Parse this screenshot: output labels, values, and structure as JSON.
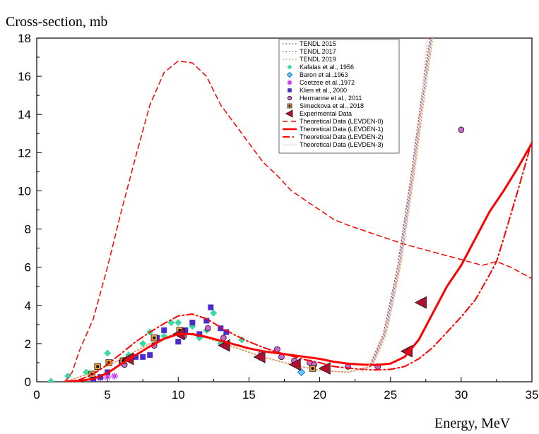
{
  "chart_data": {
    "type": "scatter",
    "title": "",
    "xlabel": "Energy, MeV",
    "ylabel": "Cross-section, mb",
    "xlim": [
      0,
      35
    ],
    "ylim": [
      0,
      18
    ],
    "xticks": [
      0,
      5,
      10,
      15,
      20,
      25,
      30,
      35
    ],
    "yticks": [
      0,
      2,
      4,
      6,
      8,
      10,
      12,
      14,
      16,
      18
    ],
    "legend_position": "top-center",
    "series": [
      {
        "name": "TENDL 2015",
        "kind": "line",
        "style": "dotted",
        "color": "#c0504d",
        "points": [
          [
            2,
            0
          ],
          [
            4,
            0.5
          ],
          [
            6,
            1.2
          ],
          [
            8,
            2.0
          ],
          [
            10,
            2.6
          ],
          [
            12,
            2.3
          ],
          [
            14,
            1.8
          ],
          [
            16,
            1.3
          ],
          [
            18,
            0.9
          ],
          [
            20,
            0.6
          ],
          [
            22,
            0.5
          ],
          [
            23.5,
            0.8
          ],
          [
            24.5,
            2.5
          ],
          [
            25.5,
            6.0
          ],
          [
            26.5,
            11.0
          ],
          [
            27.3,
            15.5
          ],
          [
            27.8,
            18
          ]
        ]
      },
      {
        "name": "TENDL 2017",
        "kind": "line",
        "style": "dotted",
        "color": "#4f81bd",
        "points": [
          [
            2,
            0
          ],
          [
            4,
            0.5
          ],
          [
            6,
            1.2
          ],
          [
            8,
            2.0
          ],
          [
            10,
            2.6
          ],
          [
            12,
            2.3
          ],
          [
            14,
            1.8
          ],
          [
            16,
            1.3
          ],
          [
            18,
            0.9
          ],
          [
            20,
            0.6
          ],
          [
            22,
            0.5
          ],
          [
            23.6,
            0.8
          ],
          [
            24.6,
            2.5
          ],
          [
            25.6,
            6.0
          ],
          [
            26.6,
            11.0
          ],
          [
            27.4,
            15.5
          ],
          [
            27.9,
            18
          ]
        ]
      },
      {
        "name": "TENDL 2019",
        "kind": "line",
        "style": "dotted",
        "color": "#f79646",
        "points": [
          [
            2,
            0
          ],
          [
            4,
            0.5
          ],
          [
            6,
            1.2
          ],
          [
            8,
            2.0
          ],
          [
            10,
            2.6
          ],
          [
            12,
            2.3
          ],
          [
            14,
            1.8
          ],
          [
            16,
            1.3
          ],
          [
            18,
            0.9
          ],
          [
            20,
            0.6
          ],
          [
            22,
            0.5
          ],
          [
            23.7,
            0.8
          ],
          [
            24.7,
            2.5
          ],
          [
            25.7,
            6.0
          ],
          [
            26.7,
            11.0
          ],
          [
            27.5,
            15.5
          ],
          [
            28.0,
            18
          ]
        ]
      },
      {
        "name": "Kafalas et al., 1956",
        "kind": "marker",
        "marker": "diamond",
        "color": "#3cd9a0",
        "points": [
          [
            1,
            0.02
          ],
          [
            2.2,
            0.3
          ],
          [
            3.5,
            0.5
          ],
          [
            5,
            1.5
          ],
          [
            6.5,
            1.4
          ],
          [
            7.5,
            2.0
          ],
          [
            8,
            2.6
          ],
          [
            9,
            2.4
          ],
          [
            9.5,
            3.1
          ],
          [
            10,
            3.1
          ],
          [
            11,
            2.9
          ],
          [
            11.5,
            2.3
          ],
          [
            12,
            2.7
          ],
          [
            12.5,
            3.6
          ],
          [
            13,
            2.0
          ],
          [
            14.5,
            2.2
          ]
        ]
      },
      {
        "name": "Baron et al.,1963",
        "kind": "marker",
        "marker": "diamond",
        "color": "#66ccff",
        "points": [
          [
            18.7,
            0.5
          ]
        ]
      },
      {
        "name": "Coetzee et al.,1972",
        "kind": "marker",
        "marker": "asterisk",
        "color": "#cc33ff",
        "points": [
          [
            4.5,
            0.2
          ],
          [
            5,
            0.25
          ],
          [
            5.5,
            0.3
          ]
        ]
      },
      {
        "name": "Klien  et al., 2000",
        "kind": "marker",
        "marker": "square",
        "color": "#4b2cc8",
        "points": [
          [
            4,
            0.15
          ],
          [
            4.5,
            0.25
          ],
          [
            5,
            0.5
          ],
          [
            6,
            1.0
          ],
          [
            7,
            1.3
          ],
          [
            7.5,
            1.3
          ],
          [
            8,
            1.4
          ],
          [
            8.5,
            2.3
          ],
          [
            9,
            2.7
          ],
          [
            10,
            2.1
          ],
          [
            10.5,
            2.7
          ],
          [
            11,
            3.1
          ],
          [
            11.5,
            2.5
          ],
          [
            12,
            3.2
          ],
          [
            12.3,
            3.9
          ],
          [
            13,
            2.8
          ],
          [
            13.4,
            2.6
          ]
        ]
      },
      {
        "name": "Hermanne et al., 2011",
        "kind": "marker",
        "marker": "circle",
        "color": "#cc66cc",
        "points": [
          [
            6.2,
            0.9
          ],
          [
            8.3,
            1.9
          ],
          [
            10.4,
            2.4
          ],
          [
            12.1,
            2.8
          ],
          [
            13.2,
            2.3
          ],
          [
            15.9,
            1.5
          ],
          [
            17,
            1.7
          ],
          [
            17.3,
            1.3
          ],
          [
            18.2,
            1.1
          ],
          [
            19.3,
            1.0
          ],
          [
            19.6,
            0.9
          ],
          [
            22,
            0.8
          ],
          [
            24.1,
            0.8
          ],
          [
            30,
            13.2
          ]
        ]
      },
      {
        "name": "Simeckova et al., 2018",
        "kind": "marker",
        "marker": "square-dot",
        "color": "#f0a040",
        "points": [
          [
            3.9,
            0.4
          ],
          [
            4.3,
            0.8
          ],
          [
            5.1,
            1.0
          ],
          [
            6.1,
            1.1
          ],
          [
            8.3,
            2.3
          ],
          [
            10.1,
            2.7
          ],
          [
            15.9,
            1.3
          ],
          [
            19.5,
            0.7
          ]
        ]
      },
      {
        "name": "Experimental Data",
        "kind": "marker",
        "marker": "triangle-left",
        "color": "#b01030",
        "points": [
          [
            6.5,
            1.2
          ],
          [
            10.1,
            2.5
          ],
          [
            13.3,
            1.9
          ],
          [
            15.8,
            1.3
          ],
          [
            18.3,
            0.9
          ],
          [
            20.4,
            0.7
          ],
          [
            26.2,
            1.6
          ],
          [
            27.2,
            4.15
          ]
        ]
      },
      {
        "name": "Theoretical Data (LEVDEN-0)",
        "kind": "line",
        "style": "dashed",
        "color": "#ff0000",
        "points": [
          [
            2,
            0
          ],
          [
            2.5,
            0.5
          ],
          [
            3,
            1.6
          ],
          [
            4,
            3.3
          ],
          [
            5,
            6.0
          ],
          [
            6,
            9.0
          ],
          [
            7,
            11.8
          ],
          [
            8,
            14.5
          ],
          [
            9,
            16.2
          ],
          [
            10,
            16.8
          ],
          [
            11,
            16.7
          ],
          [
            12,
            16.0
          ],
          [
            13,
            14.5
          ],
          [
            14,
            13.5
          ],
          [
            15,
            12.5
          ],
          [
            16,
            11.5
          ],
          [
            17,
            10.8
          ],
          [
            18,
            10.0
          ],
          [
            19,
            9.5
          ],
          [
            20,
            9.0
          ],
          [
            21,
            8.5
          ],
          [
            22,
            8.2
          ],
          [
            24,
            7.7
          ],
          [
            26,
            7.2
          ],
          [
            28,
            6.8
          ],
          [
            30,
            6.4
          ],
          [
            31.5,
            6.1
          ],
          [
            32.5,
            6.3
          ],
          [
            33.5,
            6.0
          ],
          [
            35,
            5.4
          ]
        ]
      },
      {
        "name": "Theoretical Data (LEVDEN-1)",
        "kind": "line",
        "style": "solid",
        "color": "#ff0000",
        "points": [
          [
            2,
            0
          ],
          [
            3,
            0.05
          ],
          [
            4,
            0.15
          ],
          [
            5,
            0.45
          ],
          [
            6,
            0.95
          ],
          [
            7,
            1.4
          ],
          [
            8,
            1.85
          ],
          [
            9,
            2.25
          ],
          [
            10,
            2.5
          ],
          [
            11,
            2.5
          ],
          [
            12,
            2.35
          ],
          [
            13,
            2.15
          ],
          [
            14,
            1.95
          ],
          [
            15,
            1.75
          ],
          [
            16,
            1.6
          ],
          [
            17,
            1.5
          ],
          [
            18,
            1.4
          ],
          [
            19,
            1.3
          ],
          [
            20,
            1.2
          ],
          [
            21,
            1.05
          ],
          [
            22,
            0.95
          ],
          [
            23,
            0.9
          ],
          [
            24,
            0.88
          ],
          [
            25,
            0.95
          ],
          [
            26,
            1.3
          ],
          [
            27,
            2.2
          ],
          [
            28,
            3.6
          ],
          [
            29,
            5.0
          ],
          [
            30,
            6.1
          ],
          [
            31,
            7.5
          ],
          [
            32,
            8.9
          ],
          [
            33,
            10.0
          ],
          [
            34,
            11.2
          ],
          [
            35,
            12.5
          ]
        ]
      },
      {
        "name": "Theoretical Data (LEVDEN-2)",
        "kind": "line",
        "style": "dashdot",
        "color": "#ff0000",
        "points": [
          [
            2,
            0
          ],
          [
            3,
            0.1
          ],
          [
            4,
            0.4
          ],
          [
            5,
            0.9
          ],
          [
            6,
            1.5
          ],
          [
            7,
            2.1
          ],
          [
            8,
            2.6
          ],
          [
            9,
            3.05
          ],
          [
            10,
            3.45
          ],
          [
            11,
            3.55
          ],
          [
            12,
            3.3
          ],
          [
            13,
            2.85
          ],
          [
            14,
            2.45
          ],
          [
            15,
            2.1
          ],
          [
            16,
            1.8
          ],
          [
            17,
            1.55
          ],
          [
            18,
            1.35
          ],
          [
            19,
            1.15
          ],
          [
            20,
            1.0
          ],
          [
            21,
            0.8
          ],
          [
            22,
            0.72
          ],
          [
            23,
            0.65
          ],
          [
            24,
            0.62
          ],
          [
            25,
            0.65
          ],
          [
            26,
            0.8
          ],
          [
            27,
            1.2
          ],
          [
            28,
            1.8
          ],
          [
            29,
            2.6
          ],
          [
            30,
            3.4
          ],
          [
            31,
            4.3
          ],
          [
            32,
            5.6
          ],
          [
            32.5,
            6.3
          ],
          [
            33,
            7.5
          ],
          [
            34,
            10.0
          ],
          [
            35,
            12.6
          ]
        ]
      },
      {
        "name": "Theoretical Data (LEVDEN-3)",
        "kind": "line",
        "style": "dotted",
        "color": "#f4b6c2",
        "points": [
          [
            23,
            0.5
          ],
          [
            24,
            1.3
          ],
          [
            25,
            3.5
          ],
          [
            26,
            7.5
          ],
          [
            27,
            13.0
          ],
          [
            27.6,
            18
          ]
        ]
      }
    ]
  }
}
